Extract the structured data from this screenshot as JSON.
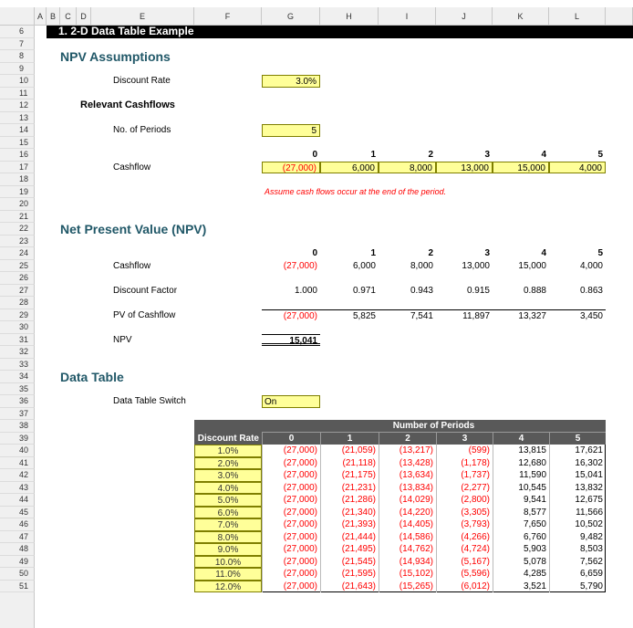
{
  "column_headers": [
    "A",
    "B",
    "C",
    "D",
    "E",
    "F",
    "G",
    "H",
    "I",
    "J",
    "K",
    "L"
  ],
  "row_numbers": [
    6,
    7,
    8,
    9,
    10,
    11,
    12,
    13,
    14,
    15,
    16,
    17,
    18,
    19,
    20,
    21,
    22,
    23,
    24,
    25,
    26,
    27,
    28,
    29,
    30,
    31,
    32,
    33,
    34,
    35,
    36,
    37,
    38,
    39,
    40,
    41,
    42,
    43,
    44,
    45,
    46,
    47,
    48,
    49,
    50,
    51
  ],
  "section_title": "1. 2-D Data Table Example",
  "npv_assumptions": {
    "heading": "NPV Assumptions",
    "discount_rate_label": "Discount Rate",
    "discount_rate": "3.0%",
    "relevant_cashflows_heading": "Relevant Cashflows",
    "periods_label": "No. of Periods",
    "periods": "5",
    "period_headers": [
      "0",
      "1",
      "2",
      "3",
      "4",
      "5"
    ],
    "cashflow_label": "Cashflow",
    "cashflows": [
      "(27,000)",
      "6,000",
      "8,000",
      "13,000",
      "15,000",
      "4,000"
    ],
    "note": "Assume cash flows occur at the end of the period."
  },
  "npv": {
    "heading": "Net Present Value (NPV)",
    "period_headers": [
      "0",
      "1",
      "2",
      "3",
      "4",
      "5"
    ],
    "rows": [
      {
        "label": "Cashflow",
        "values": [
          "(27,000)",
          "6,000",
          "8,000",
          "13,000",
          "15,000",
          "4,000"
        ]
      },
      {
        "label": "Discount Factor",
        "values": [
          "1.000",
          "0.971",
          "0.943",
          "0.915",
          "0.888",
          "0.863"
        ]
      },
      {
        "label": "PV of Cashflow",
        "values": [
          "(27,000)",
          "5,825",
          "7,541",
          "11,897",
          "13,327",
          "3,450"
        ]
      }
    ],
    "npv_label": "NPV",
    "npv_value": "15,041"
  },
  "data_table": {
    "heading": "Data Table",
    "switch_label": "Data Table Switch",
    "switch_value": "On",
    "group_header": "Number of Periods",
    "corner": "Discount Rate",
    "period_headers": [
      "0",
      "1",
      "2",
      "3",
      "4",
      "5"
    ],
    "rows": [
      [
        "1.0%",
        "(27,000)",
        "(21,059)",
        "(13,217)",
        "(599)",
        "13,815",
        "17,621"
      ],
      [
        "2.0%",
        "(27,000)",
        "(21,118)",
        "(13,428)",
        "(1,178)",
        "12,680",
        "16,302"
      ],
      [
        "3.0%",
        "(27,000)",
        "(21,175)",
        "(13,634)",
        "(1,737)",
        "11,590",
        "15,041"
      ],
      [
        "4.0%",
        "(27,000)",
        "(21,231)",
        "(13,834)",
        "(2,277)",
        "10,545",
        "13,832"
      ],
      [
        "5.0%",
        "(27,000)",
        "(21,286)",
        "(14,029)",
        "(2,800)",
        "9,541",
        "12,675"
      ],
      [
        "6.0%",
        "(27,000)",
        "(21,340)",
        "(14,220)",
        "(3,305)",
        "8,577",
        "11,566"
      ],
      [
        "7.0%",
        "(27,000)",
        "(21,393)",
        "(14,405)",
        "(3,793)",
        "7,650",
        "10,502"
      ],
      [
        "8.0%",
        "(27,000)",
        "(21,444)",
        "(14,586)",
        "(4,266)",
        "6,760",
        "9,482"
      ],
      [
        "9.0%",
        "(27,000)",
        "(21,495)",
        "(14,762)",
        "(4,724)",
        "5,903",
        "8,503"
      ],
      [
        "10.0%",
        "(27,000)",
        "(21,545)",
        "(14,934)",
        "(5,167)",
        "5,078",
        "7,562"
      ],
      [
        "11.0%",
        "(27,000)",
        "(21,595)",
        "(15,102)",
        "(5,596)",
        "4,285",
        "6,659"
      ],
      [
        "12.0%",
        "(27,000)",
        "(21,643)",
        "(15,265)",
        "(6,012)",
        "3,521",
        "5,790"
      ]
    ]
  }
}
